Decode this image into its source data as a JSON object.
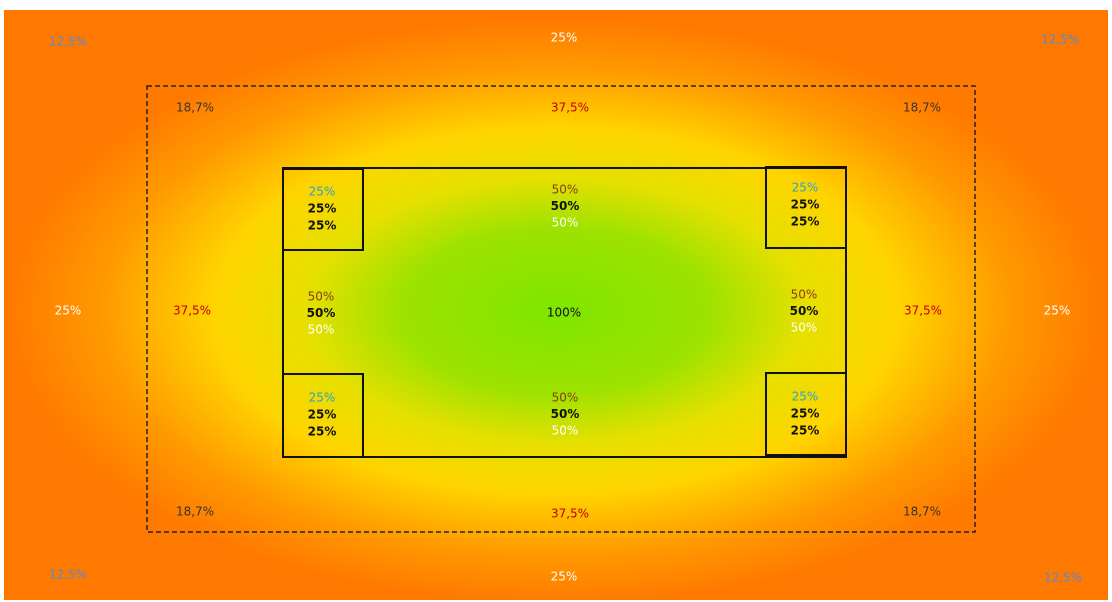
{
  "outer": [
    "12,5%",
    "25%",
    "12,5%",
    "25%",
    "25%",
    "12,5%",
    "25%",
    "12,5%"
  ],
  "middle": [
    "18,7%",
    "37,5%",
    "18,7%",
    "37,5%",
    "37,5%",
    "18,7%",
    "37,5%",
    "18,7%"
  ],
  "inner_corners": [
    [
      "25%",
      "25%",
      "25%"
    ],
    [
      "25%",
      "25%",
      "25%"
    ],
    [
      "25%",
      "25%",
      "25%"
    ],
    [
      "25%",
      "25%",
      "25%"
    ]
  ],
  "inner_edges": [
    [
      "50%",
      "50%",
      "50%"
    ],
    [
      "50%",
      "50%",
      "50%"
    ],
    [
      "50%",
      "50%",
      "50%"
    ],
    [
      "50%",
      "50%",
      "50%"
    ]
  ],
  "center": "100%"
}
